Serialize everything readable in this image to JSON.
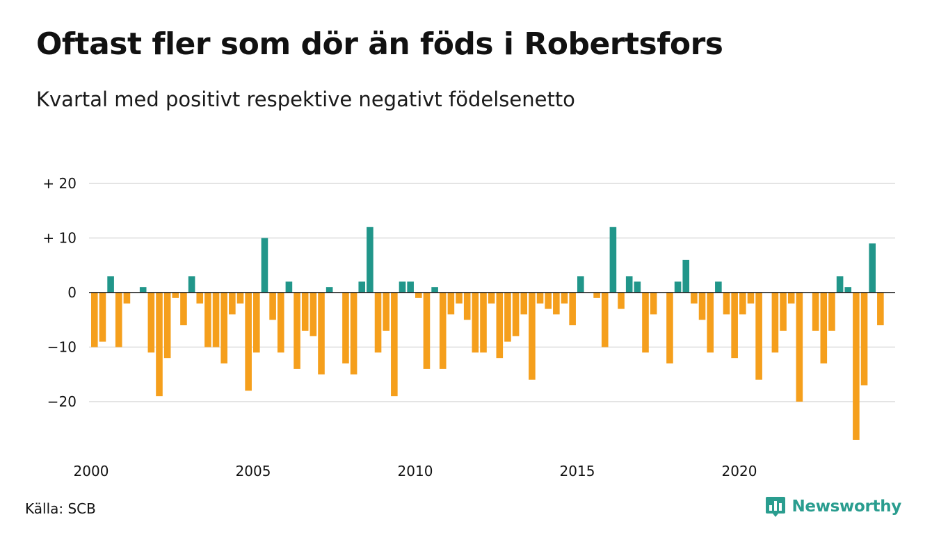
{
  "title": "Oftast fler som dör än föds i Robertsfors",
  "subtitle": "Kvartal med positivt respektive negativt födelsenetto",
  "source": "Källa: SCB",
  "brand": {
    "name": "Newsworthy",
    "icon": "newsworthy-logo-icon",
    "color": "#2a9d8f"
  },
  "colors": {
    "positive": "#21968a",
    "negative": "#f59f1c",
    "grid": "#dcdcdc",
    "zero_line": "#111111"
  },
  "chart_data": {
    "type": "bar",
    "title": "Oftast fler som dör än föds i Robertsfors",
    "subtitle": "Kvartal med positivt respektive negativt födelsenetto",
    "xlabel": "",
    "ylabel": "",
    "ylim": [
      -28,
      22
    ],
    "yticks": [
      {
        "value": 20,
        "label": "+ 20"
      },
      {
        "value": 10,
        "label": "+ 10"
      },
      {
        "value": 0,
        "label": "0"
      },
      {
        "value": -10,
        "label": "−10"
      },
      {
        "value": -20,
        "label": "−20"
      }
    ],
    "xticks": [
      "2000",
      "2005",
      "2010",
      "2015",
      "2020"
    ],
    "grid": true,
    "legend": "none",
    "x_start": "2000 Q1",
    "values": [
      -10,
      -9,
      3,
      -10,
      -2,
      0,
      1,
      -11,
      -19,
      -12,
      -1,
      -6,
      3,
      -2,
      -10,
      -10,
      -13,
      -4,
      -2,
      -18,
      -11,
      10,
      -5,
      -11,
      2,
      -14,
      -7,
      -8,
      -15,
      1,
      0,
      -13,
      -15,
      2,
      12,
      -11,
      -7,
      -19,
      2,
      2,
      -1,
      -14,
      1,
      -14,
      -4,
      -2,
      -5,
      -11,
      -11,
      -2,
      -12,
      -9,
      -8,
      -4,
      -16,
      -2,
      -3,
      -4,
      -2,
      -6,
      3,
      0,
      -1,
      -10,
      12,
      -3,
      3,
      2,
      -11,
      -4,
      0,
      -13,
      2,
      6,
      -2,
      -5,
      -11,
      2,
      -4,
      -12,
      -4,
      -2,
      -16,
      0,
      -11,
      -7,
      -2,
      -20,
      0,
      -7,
      -13,
      -7,
      3,
      1,
      -27,
      -17,
      9,
      -6
    ]
  }
}
